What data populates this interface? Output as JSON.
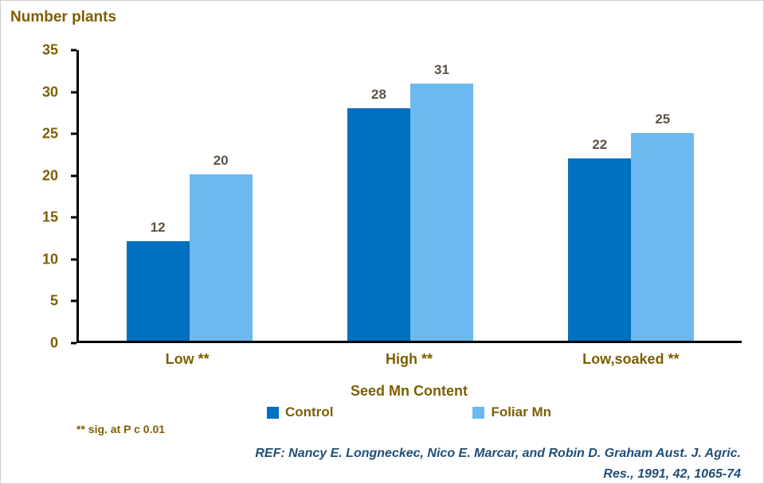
{
  "title": "Number plants",
  "chart_data": {
    "type": "bar",
    "categories": [
      "Low **",
      "High **",
      "Low,soaked **"
    ],
    "series": [
      {
        "name": "Control",
        "color": "#0070C0",
        "values": [
          12,
          28,
          22
        ]
      },
      {
        "name": "Foliar Mn",
        "color": "#6CB9F0",
        "values": [
          20,
          31,
          25
        ]
      }
    ],
    "title": "Number plants",
    "xlabel": "Seed Mn Content",
    "ylabel": "Number plants",
    "ylim": [
      0,
      35
    ],
    "yticks": [
      0,
      5,
      10,
      15,
      20,
      25,
      30,
      35
    ],
    "grid": false,
    "legend_position": "bottom"
  },
  "footnote": "** sig. at P c 0.01",
  "reference": {
    "line1": "REF: Nancy E. Longneckec, Nico E. Marcar, and Robin D. Graham Aust. J. Agric.",
    "line2": "Res., 1991, 42, 1065-74"
  },
  "colors": {
    "control": "#0070C0",
    "foliar_mn": "#6CB9F0",
    "label_brown": "#7E5F00",
    "data_label": "#5D5346",
    "reference_navy": "#1F4E79",
    "axis_black": "#000000"
  }
}
